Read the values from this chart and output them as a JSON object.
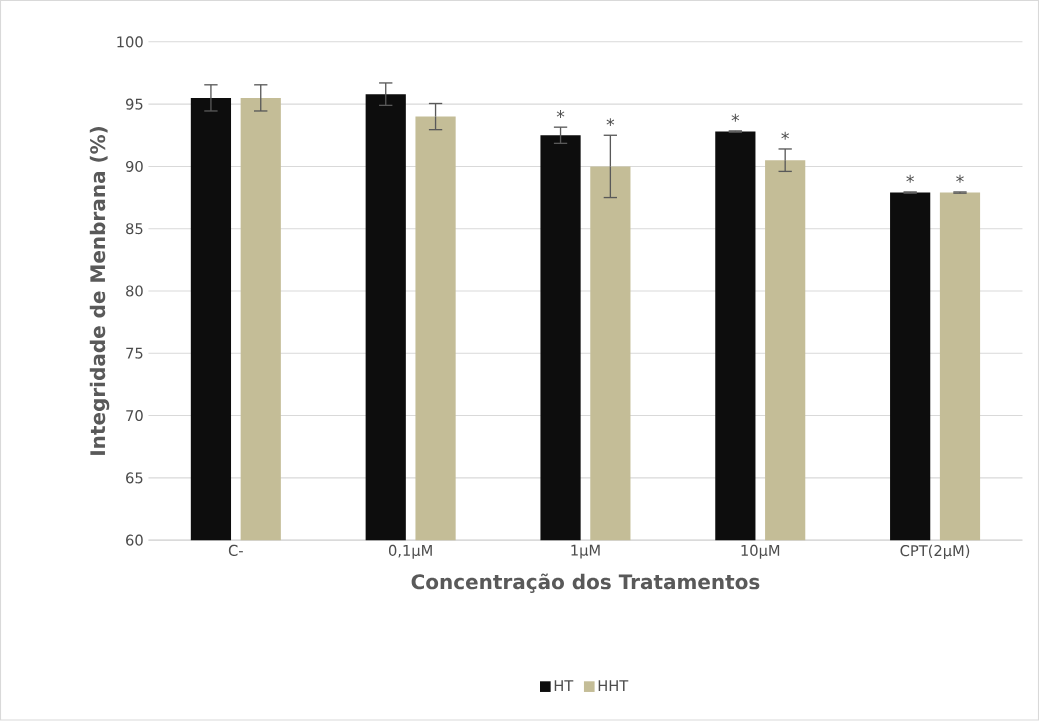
{
  "chart_data": {
    "type": "bar",
    "xlabel": "Concentração dos Tratamentos",
    "ylabel": "Integridade de Menbrana (%)",
    "categories": [
      "C-",
      "0,1µM",
      "1µM",
      "10µM",
      "CPT(2µM)"
    ],
    "series": [
      {
        "name": "HT",
        "color": "#0d0d0d",
        "values": [
          95.5,
          95.8,
          92.5,
          92.8,
          87.9
        ],
        "errors": [
          1.05,
          0.9,
          0.65,
          0.05,
          0.05
        ],
        "value_labels": [
          null,
          null,
          "*",
          "*",
          "*"
        ]
      },
      {
        "name": "HHT",
        "color": "#c4bd97",
        "values": [
          95.5,
          94.0,
          90.0,
          90.5,
          87.9
        ],
        "errors": [
          1.05,
          1.05,
          2.5,
          0.9,
          0.05
        ],
        "value_labels": [
          null,
          null,
          "*",
          "*",
          "*"
        ]
      }
    ],
    "ylim": [
      60,
      100
    ],
    "yticks": [
      60,
      65,
      70,
      75,
      80,
      85,
      90,
      95,
      100
    ],
    "grid": "y",
    "legend": "bottom"
  }
}
